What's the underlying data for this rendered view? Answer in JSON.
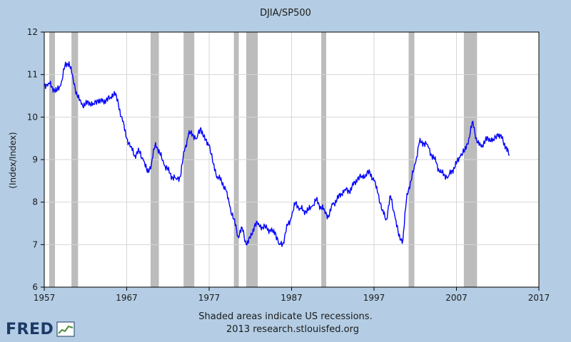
{
  "chart_data": {
    "type": "line",
    "title": "DJIA/SP500",
    "ylabel": "(Index/Index)",
    "xlabel": "",
    "xlim": [
      1957,
      2017
    ],
    "ylim": [
      6,
      12
    ],
    "x_ticks": [
      1957,
      1967,
      1977,
      1987,
      1997,
      2007,
      2017
    ],
    "y_ticks": [
      6,
      7,
      8,
      9,
      10,
      11,
      12
    ],
    "grid": true,
    "legend": "none",
    "line_color": "#0000ff",
    "recession_color": "#bcbcbc",
    "recessions": [
      [
        1957.6,
        1958.3
      ],
      [
        1960.3,
        1961.1
      ],
      [
        1969.9,
        1970.9
      ],
      [
        1973.9,
        1975.2
      ],
      [
        1980.0,
        1980.6
      ],
      [
        1981.5,
        1982.9
      ],
      [
        1990.6,
        1991.2
      ],
      [
        2001.2,
        2001.9
      ],
      [
        2007.9,
        2009.5
      ]
    ],
    "series": [
      {
        "x": [
          1957.0,
          1957.5,
          1958.0,
          1958.5,
          1959.0,
          1959.5,
          1960.0,
          1960.5,
          1961.0,
          1961.5,
          1962.0,
          1962.5,
          1963.0,
          1963.5,
          1964.0,
          1964.5,
          1965.0,
          1965.5,
          1966.0,
          1966.5,
          1967.0,
          1967.5,
          1968.0,
          1968.5,
          1969.0,
          1969.5,
          1970.0,
          1970.5,
          1971.0,
          1971.5,
          1972.0,
          1972.5,
          1973.0,
          1973.5,
          1974.0,
          1974.5,
          1975.0,
          1975.5,
          1976.0,
          1976.5,
          1977.0,
          1977.5,
          1978.0,
          1978.5,
          1979.0,
          1979.5,
          1980.0,
          1980.5,
          1981.0,
          1981.5,
          1982.0,
          1982.5,
          1983.0,
          1983.5,
          1984.0,
          1984.5,
          1985.0,
          1985.5,
          1986.0,
          1986.5,
          1987.0,
          1987.5,
          1988.0,
          1988.5,
          1989.0,
          1989.5,
          1990.0,
          1990.5,
          1991.0,
          1991.5,
          1992.0,
          1992.5,
          1993.0,
          1993.5,
          1994.0,
          1994.5,
          1995.0,
          1995.5,
          1996.0,
          1996.5,
          1997.0,
          1997.5,
          1998.0,
          1998.5,
          1999.0,
          1999.5,
          2000.0,
          2000.5,
          2001.0,
          2001.5,
          2002.0,
          2002.5,
          2003.0,
          2003.5,
          2004.0,
          2004.5,
          2005.0,
          2005.5,
          2006.0,
          2006.5,
          2007.0,
          2007.5,
          2008.0,
          2008.5,
          2009.0,
          2009.5,
          2010.0,
          2010.5,
          2011.0,
          2011.5,
          2012.0,
          2012.5,
          2013.0,
          2013.4
        ],
        "values": [
          10.75,
          10.8,
          10.7,
          10.6,
          10.75,
          11.2,
          11.3,
          10.9,
          10.5,
          10.3,
          10.3,
          10.35,
          10.3,
          10.4,
          10.35,
          10.4,
          10.45,
          10.6,
          10.3,
          9.9,
          9.5,
          9.3,
          9.1,
          9.2,
          9.0,
          8.7,
          8.9,
          9.4,
          9.15,
          8.9,
          8.75,
          8.6,
          8.55,
          8.6,
          9.2,
          9.6,
          9.6,
          9.5,
          9.75,
          9.45,
          9.35,
          8.9,
          8.6,
          8.5,
          8.3,
          7.9,
          7.6,
          7.2,
          7.4,
          7.0,
          7.15,
          7.45,
          7.5,
          7.4,
          7.4,
          7.3,
          7.3,
          7.0,
          7.05,
          7.45,
          7.65,
          8.0,
          7.85,
          7.8,
          7.8,
          7.9,
          8.05,
          7.9,
          7.8,
          7.65,
          7.95,
          8.05,
          8.2,
          8.3,
          8.25,
          8.4,
          8.55,
          8.6,
          8.65,
          8.7,
          8.5,
          8.2,
          7.8,
          7.6,
          8.15,
          7.7,
          7.2,
          7.1,
          8.2,
          8.5,
          8.9,
          9.4,
          9.4,
          9.35,
          9.1,
          8.95,
          8.7,
          8.65,
          8.6,
          8.75,
          8.9,
          9.1,
          9.2,
          9.5,
          9.9,
          9.4,
          9.3,
          9.45,
          9.5,
          9.45,
          9.6,
          9.5,
          9.3,
          9.1
        ]
      }
    ]
  },
  "footer": {
    "note1": "Shaded areas indicate US recessions.",
    "note2": "2013 research.stlouisfed.org",
    "logo": "FRED"
  }
}
